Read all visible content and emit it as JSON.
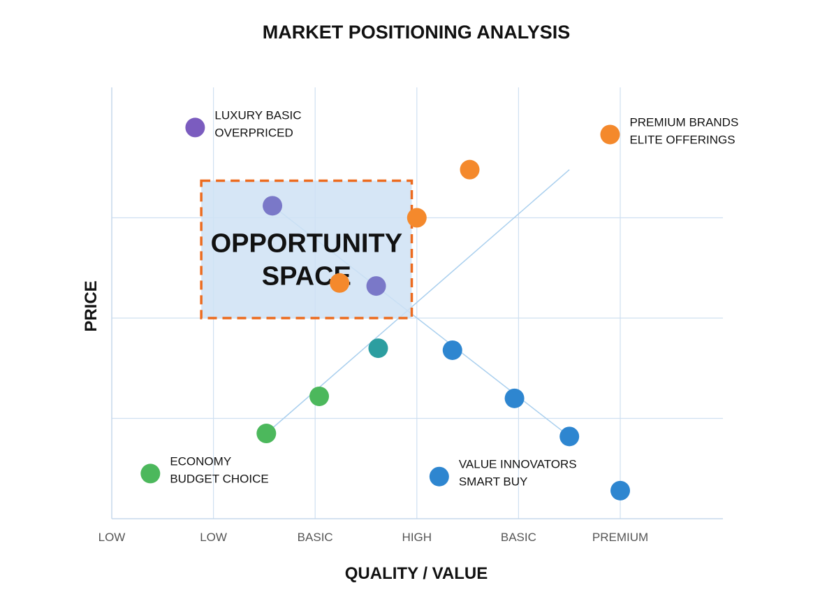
{
  "chart_data": {
    "type": "scatter",
    "title": "MARKET POSITIONING ANALYSIS",
    "xlabel": "QUALITY / VALUE",
    "ylabel": "PRICE",
    "x_tick_labels": [
      "LOW",
      "LOW",
      "BASIC",
      "HIGH",
      "BASIC",
      "PREMIUM"
    ],
    "x_ticks": [
      0,
      1,
      2,
      3,
      4,
      5
    ],
    "xlim": [
      0,
      6
    ],
    "ylim": [
      0,
      4.3
    ],
    "y_gridlines": [
      1,
      2,
      3
    ],
    "grid": true,
    "legend": "none",
    "series": [
      {
        "color": "#7b5cbf",
        "points": [
          [
            0.82,
            3.9
          ]
        ]
      },
      {
        "color": "#f4892c",
        "points": [
          [
            2.24,
            2.35
          ],
          [
            3.0,
            3.0
          ],
          [
            3.52,
            3.48
          ],
          [
            4.9,
            3.83
          ]
        ]
      },
      {
        "color": "#7a78c8",
        "points": [
          [
            1.58,
            3.12
          ],
          [
            2.6,
            2.32
          ]
        ]
      },
      {
        "color": "#2c9ea0",
        "points": [
          [
            2.62,
            1.7
          ]
        ]
      },
      {
        "color": "#4cb85c",
        "points": [
          [
            0.38,
            0.45
          ],
          [
            1.52,
            0.85
          ],
          [
            2.04,
            1.22
          ]
        ]
      },
      {
        "color": "#2e86d0",
        "points": [
          [
            3.35,
            1.68
          ],
          [
            3.96,
            1.2
          ],
          [
            4.5,
            0.82
          ],
          [
            3.22,
            0.42
          ],
          [
            5.0,
            0.28
          ]
        ]
      }
    ],
    "trend_lines": [
      [
        [
          1.52,
          0.85
        ],
        [
          4.5,
          3.48
        ]
      ],
      [
        [
          1.58,
          3.12
        ],
        [
          4.5,
          0.82
        ]
      ]
    ],
    "annotations": [
      {
        "lines": [
          "LUXURY BASIC",
          "OVERPRICED"
        ],
        "x": 0.82,
        "y": 3.9
      },
      {
        "lines": [
          "PREMIUM BRANDS",
          "ELITE OFFERINGS"
        ],
        "x": 4.9,
        "y": 3.83
      },
      {
        "lines": [
          "ECONOMY",
          "BUDGET CHOICE"
        ],
        "x": 0.38,
        "y": 0.45
      },
      {
        "lines": [
          "VALUE INNOVATORS",
          "SMART BUY"
        ],
        "x": 3.22,
        "y": 0.42
      }
    ],
    "highlight_region": {
      "lines": [
        "OPPORTUNITY",
        "SPACE"
      ],
      "x_range": [
        0.88,
        2.95
      ],
      "y_range": [
        2.0,
        3.37
      ],
      "fill": "#cfe2f5",
      "border_color": "#ec6b1f"
    }
  }
}
